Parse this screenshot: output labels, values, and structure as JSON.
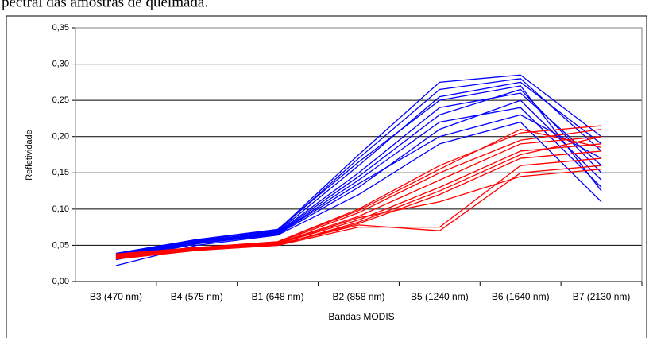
{
  "caption": "pectral das amostras de queimada.",
  "chart_data": {
    "type": "line",
    "x_label": "Bandas MODIS",
    "y_label": "Refletividade",
    "categories": [
      "B3 (470 nm)",
      "B4 (575 nm)",
      "B1 (648 nm)",
      "B2 (858 nm)",
      "B5 (1240 nm)",
      "B6 (1640 nm)",
      "B7 (2130 nm)"
    ],
    "ylim": [
      0,
      0.35
    ],
    "yticks": [
      {
        "value": 0,
        "label": "0,00"
      },
      {
        "value": 0.05,
        "label": "0,05"
      },
      {
        "value": 0.1,
        "label": "0,10"
      },
      {
        "value": 0.15,
        "label": "0,15"
      },
      {
        "value": 0.2,
        "label": "0,20"
      },
      {
        "value": 0.25,
        "label": "0,25"
      },
      {
        "value": 0.3,
        "label": "0,30"
      },
      {
        "value": 0.35,
        "label": "0,35"
      }
    ],
    "grid": true,
    "series": [
      {
        "color": "#0000ff",
        "values": [
          0.035,
          0.055,
          0.068,
          0.15,
          0.24,
          0.26,
          0.16
        ]
      },
      {
        "color": "#0000ff",
        "values": [
          0.03,
          0.052,
          0.065,
          0.13,
          0.21,
          0.25,
          0.14
        ]
      },
      {
        "color": "#0000ff",
        "values": [
          0.038,
          0.058,
          0.07,
          0.17,
          0.265,
          0.28,
          0.18
        ]
      },
      {
        "color": "#0000ff",
        "values": [
          0.033,
          0.054,
          0.066,
          0.14,
          0.22,
          0.24,
          0.13
        ]
      },
      {
        "color": "#0000ff",
        "values": [
          0.036,
          0.056,
          0.069,
          0.16,
          0.255,
          0.275,
          0.19
        ]
      },
      {
        "color": "#0000ff",
        "values": [
          0.022,
          0.05,
          0.064,
          0.12,
          0.19,
          0.22,
          0.11
        ]
      },
      {
        "color": "#0000ff",
        "values": [
          0.037,
          0.057,
          0.071,
          0.175,
          0.275,
          0.285,
          0.2
        ]
      },
      {
        "color": "#0000ff",
        "values": [
          0.034,
          0.055,
          0.067,
          0.145,
          0.23,
          0.265,
          0.15
        ]
      },
      {
        "color": "#0000ff",
        "values": [
          0.032,
          0.053,
          0.066,
          0.135,
          0.2,
          0.23,
          0.17
        ]
      },
      {
        "color": "#0000ff",
        "values": [
          0.039,
          0.058,
          0.072,
          0.165,
          0.25,
          0.27,
          0.125
        ]
      },
      {
        "color": "#ff0000",
        "values": [
          0.033,
          0.044,
          0.051,
          0.08,
          0.12,
          0.17,
          0.18
        ]
      },
      {
        "color": "#ff0000",
        "values": [
          0.036,
          0.046,
          0.053,
          0.09,
          0.14,
          0.19,
          0.2
        ]
      },
      {
        "color": "#ff0000",
        "values": [
          0.031,
          0.043,
          0.05,
          0.075,
          0.075,
          0.16,
          0.17
        ]
      },
      {
        "color": "#ff0000",
        "values": [
          0.038,
          0.047,
          0.055,
          0.1,
          0.16,
          0.205,
          0.215
        ]
      },
      {
        "color": "#ff0000",
        "values": [
          0.034,
          0.045,
          0.052,
          0.085,
          0.13,
          0.18,
          0.19
        ]
      },
      {
        "color": "#ff0000",
        "values": [
          0.032,
          0.044,
          0.051,
          0.078,
          0.07,
          0.15,
          0.16
        ]
      },
      {
        "color": "#ff0000",
        "values": [
          0.037,
          0.046,
          0.054,
          0.095,
          0.15,
          0.195,
          0.21
        ]
      },
      {
        "color": "#ff0000",
        "values": [
          0.035,
          0.045,
          0.052,
          0.088,
          0.11,
          0.145,
          0.155
        ]
      },
      {
        "color": "#ff0000",
        "values": [
          0.033,
          0.044,
          0.05,
          0.082,
          0.125,
          0.175,
          0.2
        ]
      },
      {
        "color": "#ff0000",
        "values": [
          0.036,
          0.047,
          0.055,
          0.098,
          0.155,
          0.21,
          0.185
        ]
      }
    ]
  }
}
